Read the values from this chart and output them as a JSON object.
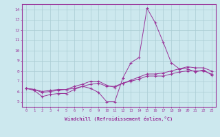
{
  "xlabel": "Windchill (Refroidissement éolien,°C)",
  "bg_color": "#cce8ee",
  "line_color": "#993399",
  "grid_color": "#aaccd4",
  "xlim": [
    -0.5,
    23.5
  ],
  "ylim": [
    4.5,
    14.5
  ],
  "xticks": [
    0,
    1,
    2,
    3,
    4,
    5,
    6,
    7,
    8,
    9,
    10,
    11,
    12,
    13,
    14,
    15,
    16,
    17,
    18,
    19,
    20,
    21,
    22,
    23
  ],
  "yticks": [
    5,
    6,
    7,
    8,
    9,
    10,
    11,
    12,
    13,
    14
  ],
  "series": [
    [
      6.3,
      6.1,
      5.5,
      5.7,
      5.8,
      5.8,
      6.2,
      6.5,
      6.3,
      5.9,
      5.0,
      5.0,
      7.3,
      8.8,
      9.3,
      14.1,
      12.7,
      10.8,
      8.8,
      8.2,
      8.2,
      7.9,
      8.1,
      7.6
    ],
    [
      6.3,
      6.2,
      5.9,
      6.0,
      6.1,
      6.2,
      6.3,
      6.5,
      6.7,
      6.8,
      6.5,
      6.5,
      6.8,
      7.0,
      7.2,
      7.5,
      7.5,
      7.5,
      7.7,
      7.9,
      8.0,
      8.0,
      8.0,
      7.7
    ],
    [
      6.3,
      6.2,
      6.0,
      6.1,
      6.2,
      6.2,
      6.5,
      6.7,
      7.0,
      7.0,
      6.6,
      6.4,
      6.8,
      7.1,
      7.4,
      7.7,
      7.7,
      7.8,
      8.0,
      8.2,
      8.4,
      8.3,
      8.3,
      8.0
    ]
  ]
}
